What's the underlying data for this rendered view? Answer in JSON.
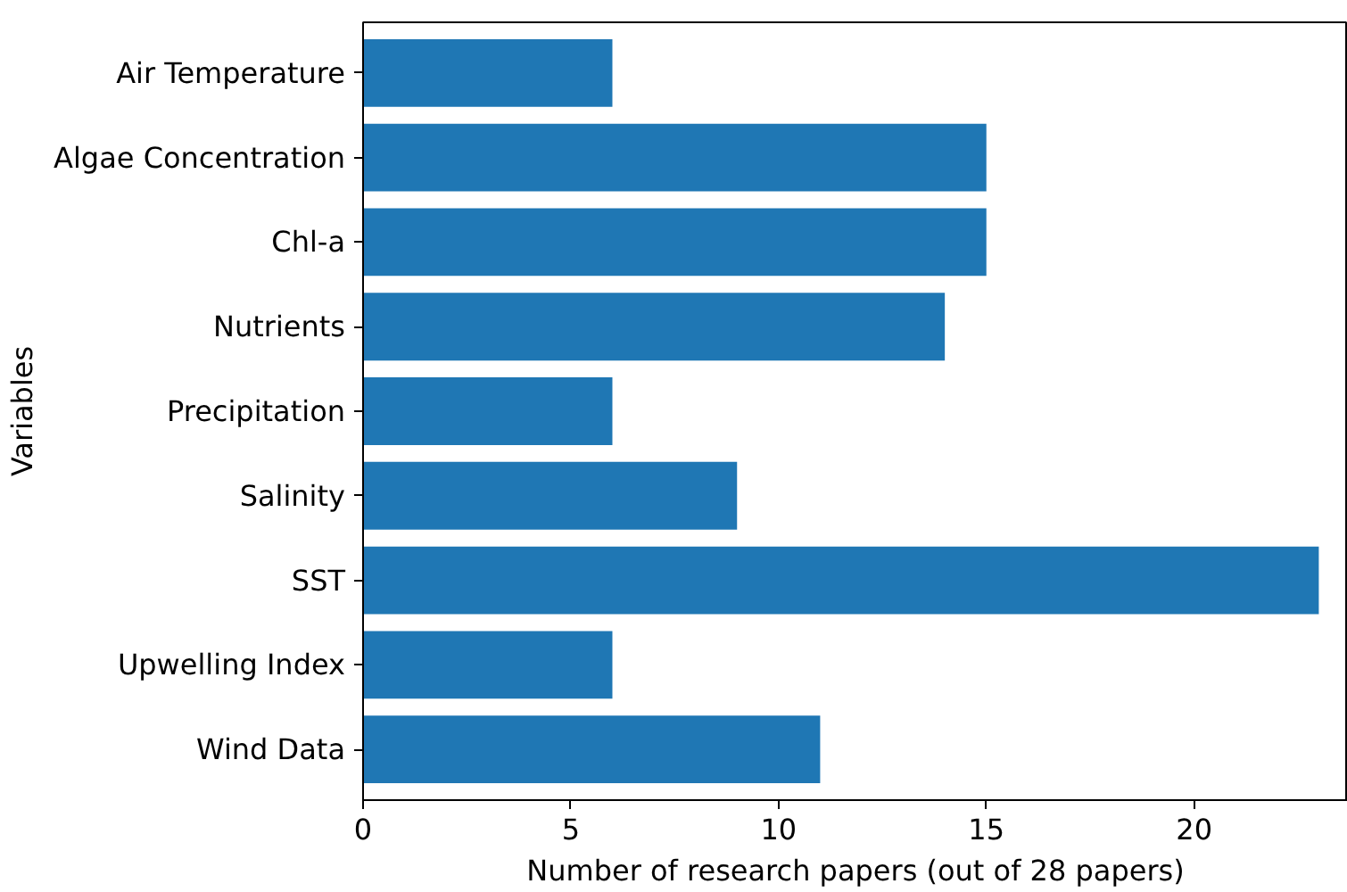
{
  "chart_data": {
    "type": "bar",
    "orientation": "horizontal",
    "xlabel": "Number of research papers (out of 28 papers)",
    "ylabel": "Variables",
    "categories": [
      "Air Temperature",
      "Algae Concentration",
      "Chl-a",
      "Nutrients",
      "Precipitation",
      "Salinity",
      "SST",
      "Upwelling Index",
      "Wind Data"
    ],
    "values": [
      6,
      15,
      15,
      14,
      6,
      9,
      23,
      6,
      11
    ],
    "color": "#1f77b4",
    "xlim": [
      0,
      23.7
    ],
    "xticks": [
      0,
      5,
      10,
      15,
      20
    ],
    "grid": false
  }
}
